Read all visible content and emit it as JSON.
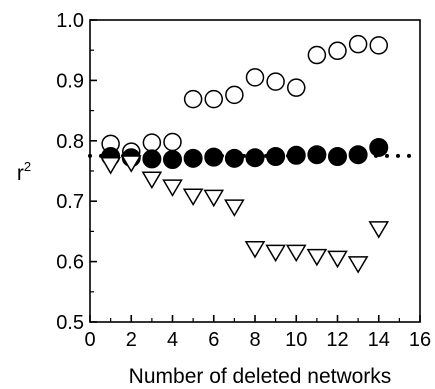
{
  "chart_data": {
    "type": "scatter",
    "title": "",
    "xlabel": "Number of deleted networks",
    "ylabel_base": "r",
    "ylabel_sup": "2",
    "xlim": [
      0,
      16
    ],
    "ylim": [
      0.5,
      1.0
    ],
    "x_ticks": [
      0,
      2,
      4,
      6,
      8,
      10,
      12,
      14,
      16
    ],
    "y_ticks": [
      0.5,
      0.6,
      0.7,
      0.8,
      0.9,
      1.0
    ],
    "y_tick_labels": [
      "0.5",
      "0.6",
      "0.7",
      "0.8",
      "0.9",
      "1.0"
    ],
    "grid": false,
    "reference_line": {
      "y": 0.775,
      "style": "dotted"
    },
    "series": [
      {
        "marker": "open-circle",
        "x": [
          1,
          2,
          3,
          4,
          5,
          6,
          7,
          8,
          9,
          10,
          11,
          12,
          13,
          14
        ],
        "y": [
          0.795,
          0.782,
          0.797,
          0.798,
          0.869,
          0.869,
          0.876,
          0.905,
          0.898,
          0.888,
          0.942,
          0.949,
          0.96,
          0.958
        ]
      },
      {
        "marker": "filled-circle",
        "x": [
          1,
          2,
          3,
          4,
          5,
          6,
          7,
          8,
          9,
          10,
          11,
          12,
          13,
          14
        ],
        "y": [
          0.774,
          0.772,
          0.77,
          0.769,
          0.771,
          0.773,
          0.771,
          0.772,
          0.774,
          0.776,
          0.777,
          0.774,
          0.777,
          0.789
        ]
      },
      {
        "marker": "open-triangle-down",
        "x": [
          1,
          2,
          3,
          4,
          5,
          6,
          7,
          8,
          9,
          10,
          11,
          12,
          13,
          14
        ],
        "y": [
          0.762,
          0.765,
          0.738,
          0.725,
          0.71,
          0.708,
          0.692,
          0.623,
          0.617,
          0.617,
          0.61,
          0.607,
          0.598,
          0.656
        ]
      }
    ]
  }
}
